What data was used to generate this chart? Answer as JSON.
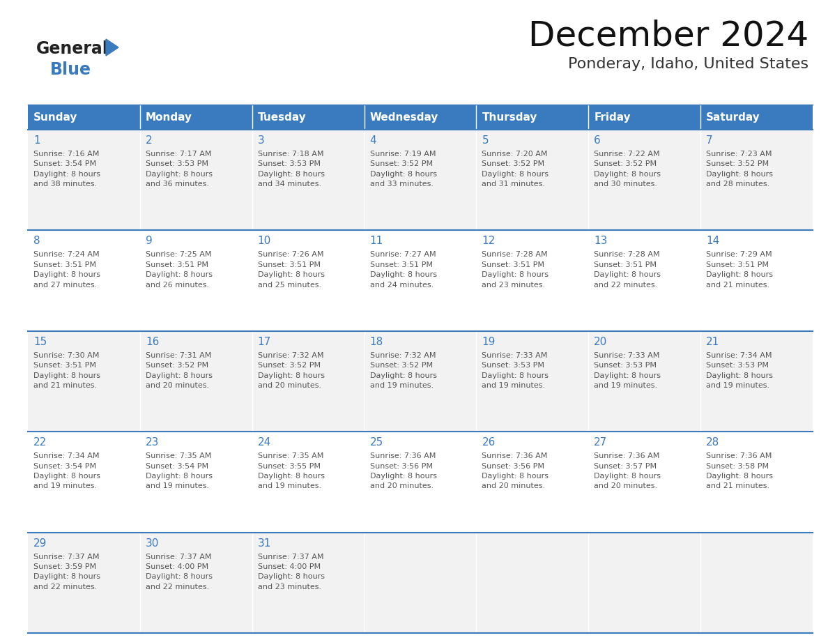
{
  "title": "December 2024",
  "subtitle": "Ponderay, Idaho, United States",
  "header_color": "#3a7abf",
  "header_text_color": "#ffffff",
  "cell_bg_even": "#f2f2f2",
  "cell_bg_odd": "#ffffff",
  "day_number_color": "#3a7abf",
  "cell_text_color": "#555555",
  "border_color": "#3a7abf",
  "days_of_week": [
    "Sunday",
    "Monday",
    "Tuesday",
    "Wednesday",
    "Thursday",
    "Friday",
    "Saturday"
  ],
  "weeks": [
    [
      {
        "day": 1,
        "sunrise": "7:16 AM",
        "sunset": "3:54 PM",
        "daylight": "8 hours\nand 38 minutes."
      },
      {
        "day": 2,
        "sunrise": "7:17 AM",
        "sunset": "3:53 PM",
        "daylight": "8 hours\nand 36 minutes."
      },
      {
        "day": 3,
        "sunrise": "7:18 AM",
        "sunset": "3:53 PM",
        "daylight": "8 hours\nand 34 minutes."
      },
      {
        "day": 4,
        "sunrise": "7:19 AM",
        "sunset": "3:52 PM",
        "daylight": "8 hours\nand 33 minutes."
      },
      {
        "day": 5,
        "sunrise": "7:20 AM",
        "sunset": "3:52 PM",
        "daylight": "8 hours\nand 31 minutes."
      },
      {
        "day": 6,
        "sunrise": "7:22 AM",
        "sunset": "3:52 PM",
        "daylight": "8 hours\nand 30 minutes."
      },
      {
        "day": 7,
        "sunrise": "7:23 AM",
        "sunset": "3:52 PM",
        "daylight": "8 hours\nand 28 minutes."
      }
    ],
    [
      {
        "day": 8,
        "sunrise": "7:24 AM",
        "sunset": "3:51 PM",
        "daylight": "8 hours\nand 27 minutes."
      },
      {
        "day": 9,
        "sunrise": "7:25 AM",
        "sunset": "3:51 PM",
        "daylight": "8 hours\nand 26 minutes."
      },
      {
        "day": 10,
        "sunrise": "7:26 AM",
        "sunset": "3:51 PM",
        "daylight": "8 hours\nand 25 minutes."
      },
      {
        "day": 11,
        "sunrise": "7:27 AM",
        "sunset": "3:51 PM",
        "daylight": "8 hours\nand 24 minutes."
      },
      {
        "day": 12,
        "sunrise": "7:28 AM",
        "sunset": "3:51 PM",
        "daylight": "8 hours\nand 23 minutes."
      },
      {
        "day": 13,
        "sunrise": "7:28 AM",
        "sunset": "3:51 PM",
        "daylight": "8 hours\nand 22 minutes."
      },
      {
        "day": 14,
        "sunrise": "7:29 AM",
        "sunset": "3:51 PM",
        "daylight": "8 hours\nand 21 minutes."
      }
    ],
    [
      {
        "day": 15,
        "sunrise": "7:30 AM",
        "sunset": "3:51 PM",
        "daylight": "8 hours\nand 21 minutes."
      },
      {
        "day": 16,
        "sunrise": "7:31 AM",
        "sunset": "3:52 PM",
        "daylight": "8 hours\nand 20 minutes."
      },
      {
        "day": 17,
        "sunrise": "7:32 AM",
        "sunset": "3:52 PM",
        "daylight": "8 hours\nand 20 minutes."
      },
      {
        "day": 18,
        "sunrise": "7:32 AM",
        "sunset": "3:52 PM",
        "daylight": "8 hours\nand 19 minutes."
      },
      {
        "day": 19,
        "sunrise": "7:33 AM",
        "sunset": "3:53 PM",
        "daylight": "8 hours\nand 19 minutes."
      },
      {
        "day": 20,
        "sunrise": "7:33 AM",
        "sunset": "3:53 PM",
        "daylight": "8 hours\nand 19 minutes."
      },
      {
        "day": 21,
        "sunrise": "7:34 AM",
        "sunset": "3:53 PM",
        "daylight": "8 hours\nand 19 minutes."
      }
    ],
    [
      {
        "day": 22,
        "sunrise": "7:34 AM",
        "sunset": "3:54 PM",
        "daylight": "8 hours\nand 19 minutes."
      },
      {
        "day": 23,
        "sunrise": "7:35 AM",
        "sunset": "3:54 PM",
        "daylight": "8 hours\nand 19 minutes."
      },
      {
        "day": 24,
        "sunrise": "7:35 AM",
        "sunset": "3:55 PM",
        "daylight": "8 hours\nand 19 minutes."
      },
      {
        "day": 25,
        "sunrise": "7:36 AM",
        "sunset": "3:56 PM",
        "daylight": "8 hours\nand 20 minutes."
      },
      {
        "day": 26,
        "sunrise": "7:36 AM",
        "sunset": "3:56 PM",
        "daylight": "8 hours\nand 20 minutes."
      },
      {
        "day": 27,
        "sunrise": "7:36 AM",
        "sunset": "3:57 PM",
        "daylight": "8 hours\nand 20 minutes."
      },
      {
        "day": 28,
        "sunrise": "7:36 AM",
        "sunset": "3:58 PM",
        "daylight": "8 hours\nand 21 minutes."
      }
    ],
    [
      {
        "day": 29,
        "sunrise": "7:37 AM",
        "sunset": "3:59 PM",
        "daylight": "8 hours\nand 22 minutes."
      },
      {
        "day": 30,
        "sunrise": "7:37 AM",
        "sunset": "4:00 PM",
        "daylight": "8 hours\nand 22 minutes."
      },
      {
        "day": 31,
        "sunrise": "7:37 AM",
        "sunset": "4:00 PM",
        "daylight": "8 hours\nand 23 minutes."
      },
      null,
      null,
      null,
      null
    ]
  ],
  "logo_text_general": "General",
  "logo_text_blue": "Blue",
  "logo_color_general": "#222222",
  "logo_color_blue": "#3a7abf",
  "logo_triangle_color": "#3a7abf"
}
